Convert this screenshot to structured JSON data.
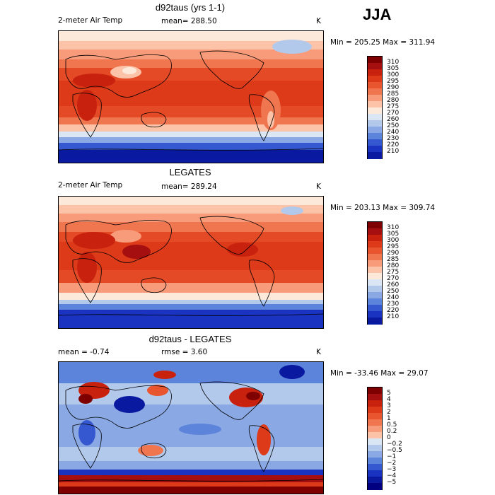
{
  "season": "JJA",
  "panels": [
    {
      "id": "model",
      "title": "d92taus (yrs 1-1)",
      "left_label": "2-meter Air Temp",
      "center_label": "mean= 288.50",
      "units": "K",
      "minmax": "Min = 205.25 Max = 311.94",
      "colorbar": {
        "labels": [
          "310",
          "305",
          "300",
          "295",
          "290",
          "285",
          "280",
          "275",
          "270",
          "260",
          "250",
          "240",
          "230",
          "220",
          "210"
        ],
        "colors": [
          "#7f0000",
          "#a50f0f",
          "#c8220f",
          "#dd3a1a",
          "#e8552e",
          "#f07650",
          "#f89b7a",
          "#fcc3a8",
          "#fde9da",
          "#dbe6f5",
          "#b3c9ec",
          "#8aa9e4",
          "#5d84db",
          "#3558d1",
          "#1a33c0",
          "#0a1aa0"
        ]
      }
    },
    {
      "id": "obs",
      "title": "LEGATES",
      "left_label": "2-meter Air Temp",
      "center_label": "mean= 289.24",
      "units": "K",
      "minmax": "Min = 203.13 Max = 309.74",
      "colorbar": {
        "labels": [
          "310",
          "305",
          "300",
          "295",
          "290",
          "285",
          "280",
          "275",
          "270",
          "260",
          "250",
          "240",
          "230",
          "220",
          "210"
        ],
        "colors": [
          "#7f0000",
          "#a50f0f",
          "#c8220f",
          "#dd3a1a",
          "#e8552e",
          "#f07650",
          "#f89b7a",
          "#fcc3a8",
          "#fde9da",
          "#dbe6f5",
          "#b3c9ec",
          "#8aa9e4",
          "#5d84db",
          "#3558d1",
          "#1a33c0",
          "#0a1aa0"
        ]
      }
    },
    {
      "id": "diff",
      "title": "d92taus - LEGATES",
      "left_label": "mean =   -0.74",
      "center_label": "rmse =    3.60",
      "units": "K",
      "minmax": "Min = -33.46 Max =  29.07",
      "colorbar": {
        "labels": [
          "5",
          "4",
          "3",
          "2",
          "1",
          "0.5",
          "0.2",
          "0",
          "−0.2",
          "−0.5",
          "−1",
          "−2",
          "−3",
          "−4",
          "−5"
        ],
        "colors": [
          "#7f0000",
          "#a50f0f",
          "#c8220f",
          "#dd3a1a",
          "#e8552e",
          "#f07650",
          "#f89b7a",
          "#fcc3a8",
          "#dbe6f5",
          "#b3c9ec",
          "#8aa9e4",
          "#5d84db",
          "#3558d1",
          "#1a33c0",
          "#0a1aa0",
          "#000080"
        ]
      }
    }
  ]
}
